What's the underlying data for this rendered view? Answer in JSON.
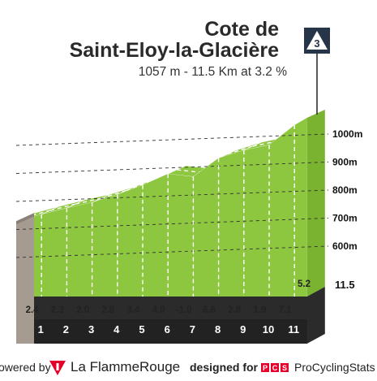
{
  "header": {
    "title_line1": "Cote de",
    "title_line2": "Saint-Eloy-la-Glacière",
    "subtitle": "1057 m - 11.5 Km at 3.2 %",
    "category": "3"
  },
  "footer": {
    "powered_by": "owered by",
    "brand1": "La FlammeRouge",
    "designed_for": "designed for",
    "badge": "PCS",
    "brand2": "ProCyclingStats"
  },
  "colors": {
    "climb": "#8dc63f",
    "steep": "#e4002b",
    "very_steep": "#1d5c8c",
    "wall": "#a69b91",
    "base": "#2b2b2b"
  },
  "chart_data": {
    "type": "area",
    "title": "Cote de Saint-Eloy-la-Glacière",
    "subtitle": "1057 m - 11.5 Km at 3.2 %",
    "x_unit": "km",
    "y_unit": "m",
    "km_markers": [
      "1",
      "2",
      "3",
      "4",
      "5",
      "6",
      "7",
      "8",
      "9",
      "10",
      "11"
    ],
    "final_km": "11.5",
    "segments": [
      {
        "km": "1",
        "gradient": "2.4",
        "color": "green"
      },
      {
        "km": "2",
        "gradient": "2.3",
        "color": "green"
      },
      {
        "km": "3",
        "gradient": "2.0",
        "color": "green"
      },
      {
        "km": "4",
        "gradient": "2.8",
        "color": "green"
      },
      {
        "km": "5",
        "gradient": "3.4",
        "color": "green"
      },
      {
        "km": "6",
        "gradient": "4.0",
        "color": "green"
      },
      {
        "km": "7",
        "gradient": "-1.0",
        "color": "green"
      },
      {
        "km": "8",
        "gradient": "6.6",
        "color": "red"
      },
      {
        "km": "9",
        "gradient": "2.8",
        "color": "green"
      },
      {
        "km": "10",
        "gradient": "1.9",
        "color": "green"
      },
      {
        "km": "11",
        "gradient": "7.1",
        "color": "red"
      },
      {
        "km": "11.5",
        "gradient": "5.2",
        "color": "blue"
      }
    ],
    "altitude_ticks": [
      "600m",
      "700m",
      "800m",
      "900m",
      "1000m"
    ],
    "altitude_values": [
      600,
      700,
      800,
      900,
      1000
    ],
    "km_values": [
      0,
      1,
      2,
      3,
      4,
      5,
      6,
      7,
      8,
      9,
      10,
      11,
      11.5
    ],
    "elevation": [
      689,
      713,
      736,
      756,
      784,
      818,
      858,
      848,
      914,
      942,
      961,
      1032,
      1058
    ]
  }
}
